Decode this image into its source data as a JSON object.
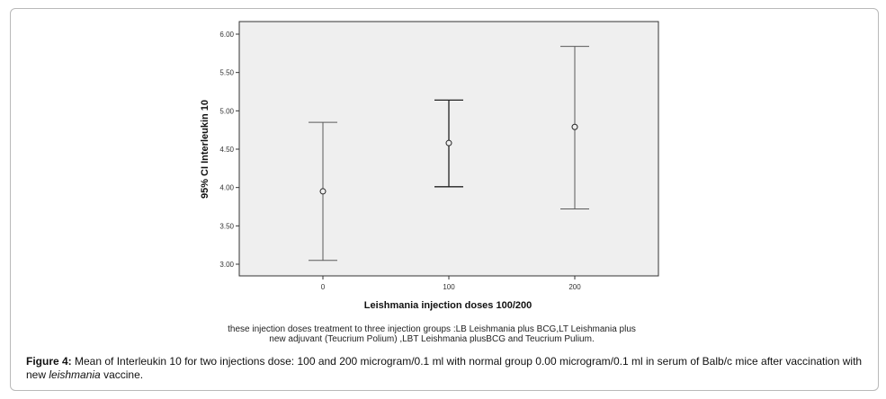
{
  "chart_data": {
    "type": "errorbar",
    "xlabel": "Leishmania injection doses 100/200",
    "ylabel": "95% CI Interleukin 10",
    "ylim": [
      3.0,
      6.0
    ],
    "yticks": [
      "3.00",
      "3.50",
      "4.00",
      "4.50",
      "5.00",
      "5.50",
      "6.00"
    ],
    "categories": [
      "0",
      "100",
      "200"
    ],
    "means": [
      3.95,
      4.58,
      4.79
    ],
    "lower": [
      3.05,
      4.01,
      3.72
    ],
    "upper": [
      4.85,
      5.14,
      5.84
    ],
    "grid": false,
    "plot_background": "#efefef",
    "colors": {
      "bar": "#5a5a5a",
      "bar_dark": "#222222",
      "axis": "#333333"
    }
  },
  "note": {
    "line1": "these injection doses treatment to three injection groups :LB Leishmania plus BCG,LT Leishmania plus",
    "line2": "new adjuvant (Teucrium Polium) ,LBT Leishmania plusBCG and Teucrium Pulium."
  },
  "caption": {
    "label": "Figure 4:",
    "text_before": " Mean of Interleukin 10 for two injections dose: 100 and 200 microgram/0.1 ml with normal group 0.00 microgram/0.1 ml  in serum of Balb/c mice after vaccination with new ",
    "italic": "leishmania",
    "text_after": " vaccine."
  }
}
